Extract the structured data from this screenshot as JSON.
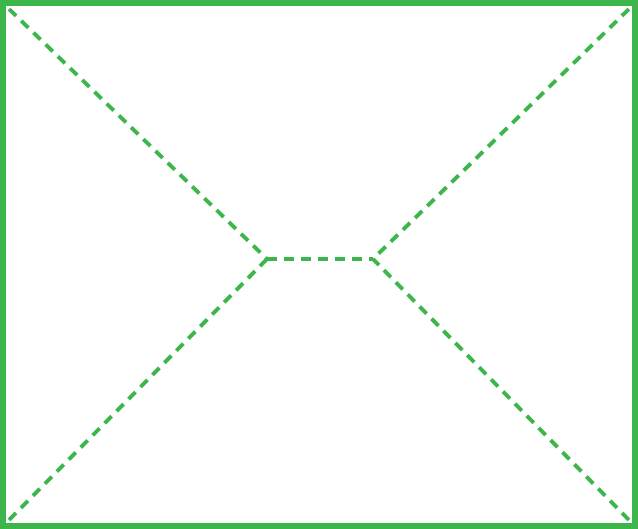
{
  "diagram": {
    "kind": "envelope-fold-lines",
    "stroke_color": "#3cb54a",
    "background_color": "#ffffff",
    "border": {
      "style": "solid"
    },
    "fold_lines": [
      {
        "name": "fold-line-top-left",
        "style": "dashed"
      },
      {
        "name": "fold-line-top-right",
        "style": "dashed"
      },
      {
        "name": "fold-line-bottom-left",
        "style": "dashed"
      },
      {
        "name": "fold-line-bottom-right",
        "style": "dashed"
      },
      {
        "name": "fold-line-center",
        "style": "dashed"
      }
    ]
  }
}
